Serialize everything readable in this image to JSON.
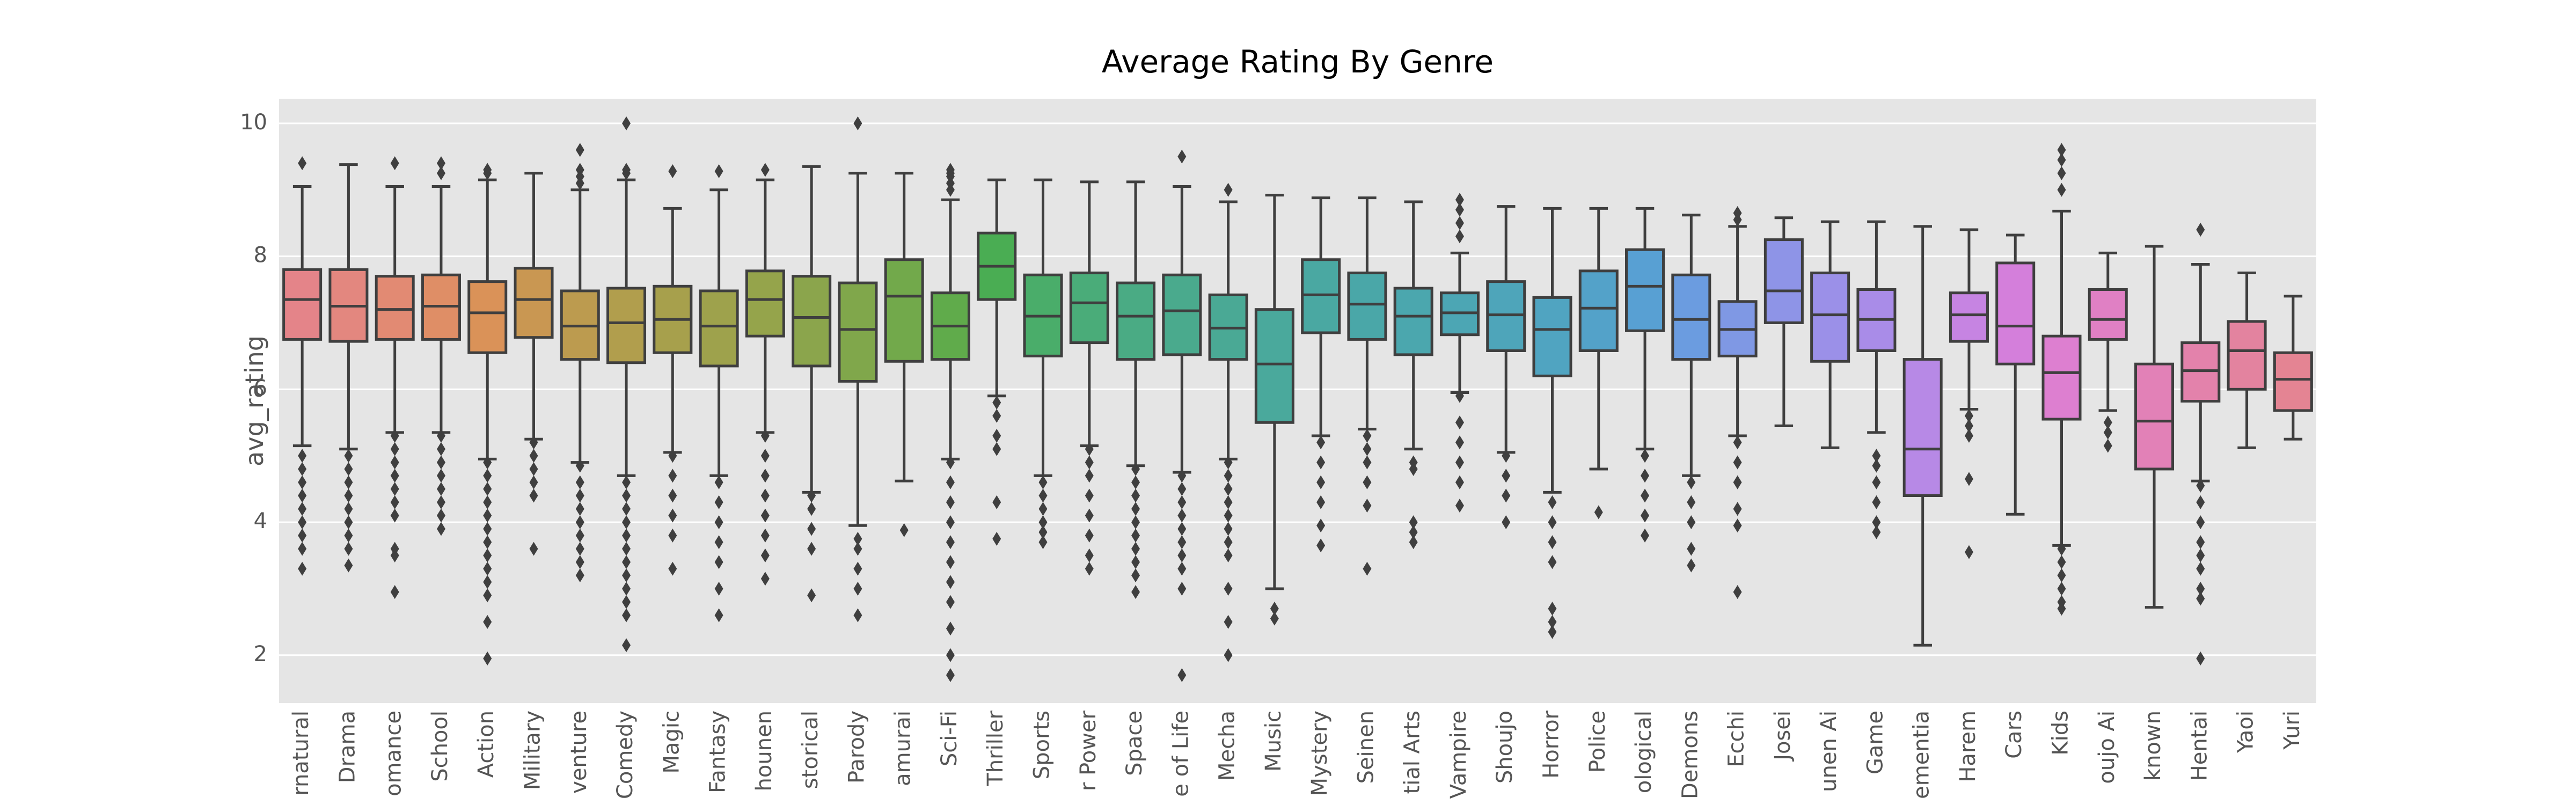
{
  "chart_data": {
    "type": "box",
    "title": "Average Rating By Genre",
    "ylabel": "avg_rating",
    "categories": [
      "rnatural",
      "Drama",
      "omance",
      "School",
      "Action",
      "Military",
      "venture",
      "Comedy",
      "Magic",
      "Fantasy",
      "hounen",
      "storical",
      "Parody",
      "amurai",
      "Sci-Fi",
      "Thriller",
      "Sports",
      "r Power",
      "Space",
      "e of Life",
      "Mecha",
      "Music",
      "Mystery",
      "Seinen",
      "tial Arts",
      "Vampire",
      "Shoujo",
      "Horror",
      "Police",
      "ological",
      "Demons",
      "Ecchi",
      "Josei",
      "unen Ai",
      "Game",
      "ementia",
      "Harem",
      "Cars",
      "Kids",
      "oujo Ai",
      "known",
      "Hentai",
      "Yaoi",
      "Yuri"
    ],
    "whisker_low": [
      5.15,
      5.1,
      5.35,
      5.35,
      4.95,
      5.25,
      4.9,
      4.7,
      5.05,
      4.7,
      5.35,
      4.45,
      3.95,
      4.62,
      4.95,
      5.9,
      4.7,
      5.15,
      4.85,
      4.75,
      4.95,
      3.0,
      5.3,
      5.4,
      5.1,
      5.95,
      5.05,
      4.45,
      4.8,
      5.1,
      4.7,
      5.3,
      5.45,
      5.12,
      5.35,
      2.15,
      5.7,
      4.12,
      3.65,
      5.68,
      2.72,
      4.62,
      5.12,
      5.25
    ],
    "q1": [
      6.75,
      6.72,
      6.75,
      6.75,
      6.55,
      6.78,
      6.45,
      6.4,
      6.55,
      6.35,
      6.8,
      6.35,
      6.12,
      6.42,
      6.45,
      7.35,
      6.5,
      6.7,
      6.45,
      6.52,
      6.45,
      5.5,
      6.85,
      6.75,
      6.52,
      6.82,
      6.58,
      6.2,
      6.58,
      6.88,
      6.45,
      6.5,
      7.0,
      6.42,
      6.58,
      4.4,
      6.72,
      6.38,
      5.55,
      6.75,
      4.8,
      5.82,
      6.0,
      5.68
    ],
    "median": [
      7.35,
      7.25,
      7.2,
      7.25,
      7.15,
      7.35,
      6.95,
      7.0,
      7.05,
      6.95,
      7.35,
      7.08,
      6.9,
      7.4,
      6.95,
      7.85,
      7.1,
      7.3,
      7.1,
      7.18,
      6.92,
      6.38,
      7.42,
      7.28,
      7.1,
      7.15,
      7.12,
      6.9,
      7.22,
      7.55,
      7.05,
      6.9,
      7.48,
      7.12,
      7.05,
      5.1,
      7.12,
      6.95,
      6.25,
      7.05,
      5.52,
      6.28,
      6.58,
      6.15
    ],
    "q3": [
      7.8,
      7.8,
      7.7,
      7.72,
      7.62,
      7.82,
      7.48,
      7.52,
      7.55,
      7.48,
      7.78,
      7.7,
      7.6,
      7.95,
      7.45,
      8.35,
      7.72,
      7.75,
      7.6,
      7.72,
      7.42,
      7.2,
      7.95,
      7.75,
      7.52,
      7.45,
      7.62,
      7.38,
      7.78,
      8.1,
      7.72,
      7.32,
      8.25,
      7.75,
      7.5,
      6.45,
      7.45,
      7.9,
      6.8,
      7.5,
      6.38,
      6.7,
      7.02,
      6.55
    ],
    "whisker_high": [
      9.05,
      9.38,
      9.05,
      9.05,
      9.15,
      9.25,
      9.0,
      9.15,
      8.72,
      9.0,
      9.15,
      9.35,
      9.25,
      9.25,
      8.85,
      9.15,
      9.15,
      9.12,
      9.12,
      9.05,
      8.82,
      8.92,
      8.88,
      8.88,
      8.82,
      8.05,
      8.75,
      8.72,
      8.72,
      8.72,
      8.62,
      8.45,
      8.58,
      8.52,
      8.52,
      8.45,
      8.4,
      8.32,
      8.68,
      8.05,
      8.15,
      7.88,
      7.75,
      7.4
    ],
    "outliers": [
      [
        9.4,
        5.0,
        4.8,
        4.6,
        4.4,
        4.2,
        4.0,
        3.8,
        3.6,
        3.3
      ],
      [
        5.0,
        4.8,
        4.6,
        4.4,
        4.2,
        4.0,
        3.8,
        3.6,
        3.35
      ],
      [
        9.4,
        5.3,
        5.1,
        4.9,
        4.7,
        4.5,
        4.3,
        4.1,
        3.6,
        3.5,
        2.95
      ],
      [
        9.4,
        9.25,
        5.3,
        5.1,
        4.9,
        4.7,
        4.5,
        4.3,
        4.1,
        3.9
      ],
      [
        9.3,
        9.25,
        4.9,
        4.7,
        4.5,
        4.3,
        4.1,
        3.9,
        3.7,
        3.5,
        3.3,
        3.1,
        2.9,
        2.5,
        1.95
      ],
      [
        5.2,
        5.0,
        4.8,
        4.6,
        4.4,
        3.6
      ],
      [
        9.6,
        9.3,
        9.2,
        9.1,
        4.85,
        4.6,
        4.4,
        4.2,
        4.0,
        3.8,
        3.6,
        3.4,
        3.2
      ],
      [
        10.0,
        9.3,
        9.25,
        4.6,
        4.4,
        4.2,
        4.0,
        3.8,
        3.6,
        3.4,
        3.2,
        3.0,
        2.8,
        2.6,
        2.15
      ],
      [
        9.28,
        5.0,
        4.7,
        4.4,
        4.1,
        3.8,
        3.3
      ],
      [
        9.28,
        4.6,
        4.3,
        4.0,
        3.7,
        3.4,
        3.0,
        2.6
      ],
      [
        9.3,
        5.3,
        5.0,
        4.7,
        4.4,
        4.1,
        3.8,
        3.5,
        3.15
      ],
      [
        4.4,
        4.2,
        3.9,
        3.6,
        2.9
      ],
      [
        10.0,
        3.75,
        3.6,
        3.3,
        3.0,
        2.6
      ],
      [
        3.88
      ],
      [
        9.3,
        9.25,
        9.2,
        9.1,
        9.0,
        4.9,
        4.6,
        4.3,
        4.0,
        3.7,
        3.4,
        3.1,
        2.8,
        2.4,
        2.0,
        1.7
      ],
      [
        5.8,
        5.6,
        5.3,
        5.1,
        4.3,
        3.75
      ],
      [
        4.6,
        4.4,
        4.2,
        4.0,
        3.85,
        3.7
      ],
      [
        5.1,
        4.9,
        4.7,
        4.4,
        4.1,
        3.8,
        3.5,
        3.3
      ],
      [
        4.8,
        4.6,
        4.4,
        4.2,
        4.0,
        3.8,
        3.6,
        3.4,
        3.2,
        2.95
      ],
      [
        9.5,
        4.7,
        4.5,
        4.3,
        4.1,
        3.9,
        3.7,
        3.5,
        3.3,
        3.0,
        1.7
      ],
      [
        9.0,
        4.9,
        4.7,
        4.5,
        4.3,
        4.1,
        3.9,
        3.7,
        3.5,
        3.0,
        2.5,
        2.0
      ],
      [
        2.7,
        2.55
      ],
      [
        5.2,
        4.9,
        4.6,
        4.3,
        3.95,
        3.65
      ],
      [
        5.3,
        5.1,
        4.9,
        4.6,
        4.25,
        3.3
      ],
      [
        4.9,
        4.8,
        4.0,
        3.85,
        3.7
      ],
      [
        8.85,
        8.7,
        8.5,
        8.3,
        5.9,
        5.5,
        5.2,
        4.9,
        4.6,
        4.25
      ],
      [
        5.0,
        4.7,
        4.4,
        4.0
      ],
      [
        4.3,
        4.0,
        3.7,
        3.4,
        2.7,
        2.5,
        2.35
      ],
      [
        4.15
      ],
      [
        5.0,
        4.7,
        4.4,
        4.1,
        3.8
      ],
      [
        4.6,
        4.3,
        4.0,
        3.6,
        3.35
      ],
      [
        8.65,
        8.55,
        5.2,
        4.9,
        4.6,
        4.2,
        3.95,
        2.95
      ],
      [],
      [],
      [
        5.0,
        4.85,
        4.6,
        4.3,
        4.0,
        3.85
      ],
      [],
      [
        5.6,
        5.45,
        5.3,
        4.65,
        3.55
      ],
      [],
      [
        9.6,
        9.45,
        9.25,
        9.0,
        3.6,
        3.4,
        3.2,
        3.0,
        2.8,
        2.7
      ],
      [
        5.5,
        5.35,
        5.15
      ],
      [],
      [
        8.4,
        4.55,
        4.3,
        4.0,
        3.7,
        3.5,
        3.3,
        3.0,
        2.85,
        1.95
      ],
      [],
      []
    ],
    "colors": [
      "#e48489",
      "#e3877f",
      "#e28a73",
      "#df8e66",
      "#da9258",
      "#c99752",
      "#bc9b4f",
      "#b19e4d",
      "#a7a04c",
      "#9ea24c",
      "#95a44b",
      "#8ba54c",
      "#80a74b",
      "#72a94b",
      "#60ab4b",
      "#4aad53",
      "#4aad6a",
      "#4aac79",
      "#4aab84",
      "#4aaa8d",
      "#4aa995",
      "#4aa99c",
      "#4aa8a2",
      "#4aa7a8",
      "#4ba7ae",
      "#4ca6b4",
      "#4ea5ba",
      "#50a4c1",
      "#53a2c9",
      "#58a0d3",
      "#6b9ce0",
      "#7f98e4",
      "#8e94e7",
      "#9b90e8",
      "#a98ce8",
      "#b789e6",
      "#c684e2",
      "#d47fdb",
      "#dd7fd0",
      "#e080c4",
      "#e281b7",
      "#e382ab",
      "#e3839f",
      "#e48493"
    ],
    "ylim": [
      1.28,
      10.37
    ],
    "yticks": [
      2,
      4,
      6,
      8,
      10
    ],
    "grid": true
  }
}
